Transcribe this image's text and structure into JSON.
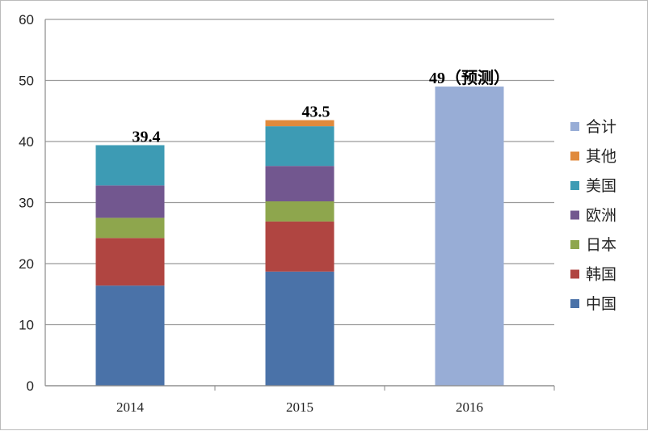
{
  "chart_data": {
    "type": "bar",
    "stacked": true,
    "title": "",
    "xlabel": "",
    "ylabel": "",
    "ylim": [
      0,
      60
    ],
    "yticks": [
      0,
      10,
      20,
      30,
      40,
      50,
      60
    ],
    "grid": true,
    "legend_position": "right",
    "categories": [
      "2014",
      "2015",
      "2016"
    ],
    "series": [
      {
        "name": "中国",
        "color": "#4a72a8",
        "values": [
          16.4,
          18.7,
          null
        ]
      },
      {
        "name": "韩国",
        "color": "#b04541",
        "values": [
          7.8,
          8.2,
          null
        ]
      },
      {
        "name": "日本",
        "color": "#8ea64d",
        "values": [
          3.3,
          3.3,
          null
        ]
      },
      {
        "name": "欧洲",
        "color": "#72578f",
        "values": [
          5.3,
          5.8,
          null
        ]
      },
      {
        "name": "美国",
        "color": "#3d9bb4",
        "values": [
          6.6,
          6.5,
          null
        ]
      },
      {
        "name": "其他",
        "color": "#e08a3c",
        "values": [
          0,
          1.0,
          null
        ]
      },
      {
        "name": "合计",
        "color": "#98add6",
        "values": [
          null,
          null,
          49
        ]
      }
    ],
    "data_labels": [
      "39.4",
      "43.5",
      "49（预测）"
    ]
  }
}
